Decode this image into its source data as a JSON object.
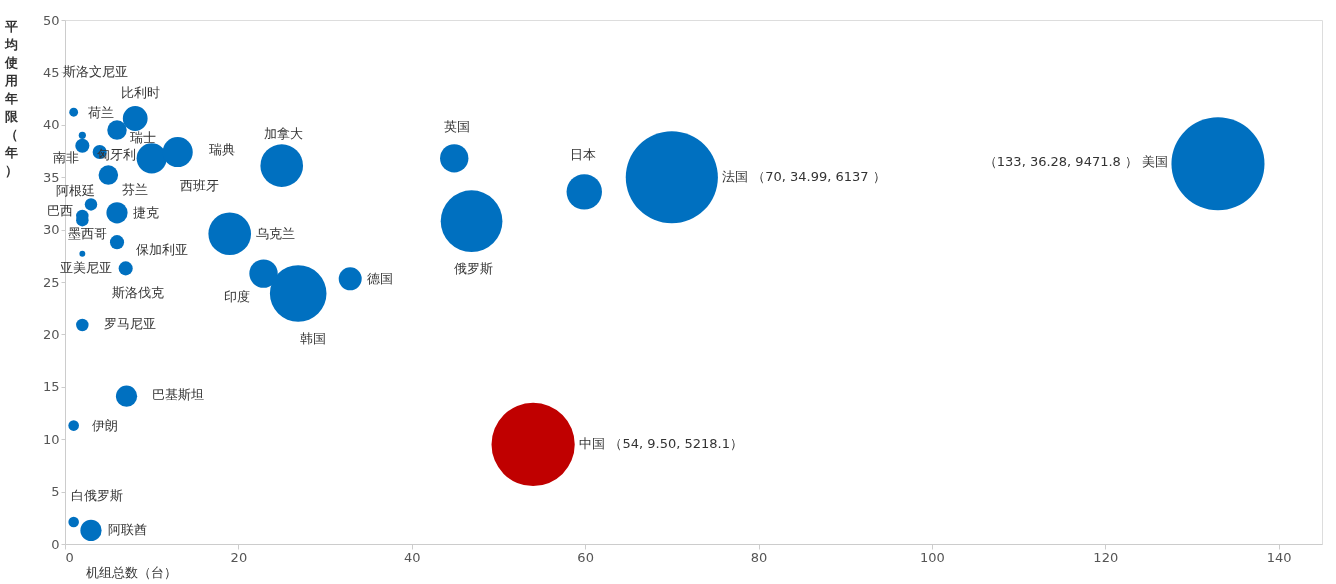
{
  "chart_data": {
    "type": "bubble",
    "xlabel": "机组总数（台）",
    "ylabel": "平均使用年限（年）",
    "xlim": [
      0,
      145
    ],
    "xticks": [
      0,
      20,
      40,
      60,
      80,
      100,
      120,
      140
    ],
    "ylim": [
      0,
      50
    ],
    "yticks": [
      0,
      5,
      10,
      15,
      20,
      25,
      30,
      35,
      40,
      45,
      50
    ],
    "grid": false,
    "legend": false,
    "series": [
      {
        "color": "#0070c0",
        "x": [
          1,
          2,
          8.1,
          6,
          2,
          4,
          10,
          13,
          5,
          3,
          2,
          2,
          6,
          6,
          2,
          7,
          2,
          7.1,
          1,
          1,
          3,
          22.9,
          26.9,
          32.9,
          25,
          19,
          44.9,
          46.9,
          59.9,
          70,
          133
        ],
        "values": [
          41.2,
          39.0,
          40.6,
          39.5,
          38.0,
          37.4,
          36.8,
          37.4,
          35.2,
          32.4,
          31.3,
          30.9,
          31.6,
          28.8,
          27.7,
          26.3,
          20.9,
          14.1,
          11.3,
          2.1,
          1.3,
          25.8,
          23.9,
          25.3,
          36.1,
          29.6,
          36.8,
          30.8,
          33.6,
          34.99,
          36.28
        ],
        "sizes": [
          0.009,
          0.006,
          0.071,
          0.044,
          0.023,
          0.023,
          0.105,
          0.105,
          0.044,
          0.018,
          0.018,
          0.018,
          0.052,
          0.023,
          0.004,
          0.023,
          0.018,
          0.052,
          0.013,
          0.013,
          0.052,
          0.093,
          0.37,
          0.061,
          0.21,
          0.21,
          0.093,
          0.44,
          0.145,
          0.98,
          1
        ],
        "value_labels": [
          "斯洛文尼亚",
          "荷兰",
          "比利时",
          "瑞士",
          "南非",
          "匈牙利",
          "西班牙",
          "瑞典",
          "芬兰",
          "阿根廷",
          "巴西",
          "墨西哥",
          "捷克",
          "保加利亚",
          "亚美尼亚",
          "斯洛伐克",
          "罗马尼亚",
          "巴基斯坦",
          "伊朗",
          "白俄罗斯",
          "阿联酋",
          "印度",
          "韩国",
          "德国",
          "加拿大",
          "乌克兰",
          "英国",
          "俄罗斯",
          "日本",
          "法国  （70, 34.99, 6137 ）",
          "（133, 36.28, 9471.8 ）  美国"
        ]
      },
      {
        "color": "#c00000",
        "x": [
          54
        ],
        "values": [
          9.5
        ],
        "sizes": [
          0.8
        ],
        "value_labels": [
          "中国  （54, 9.50, 5218.1）"
        ]
      }
    ]
  }
}
